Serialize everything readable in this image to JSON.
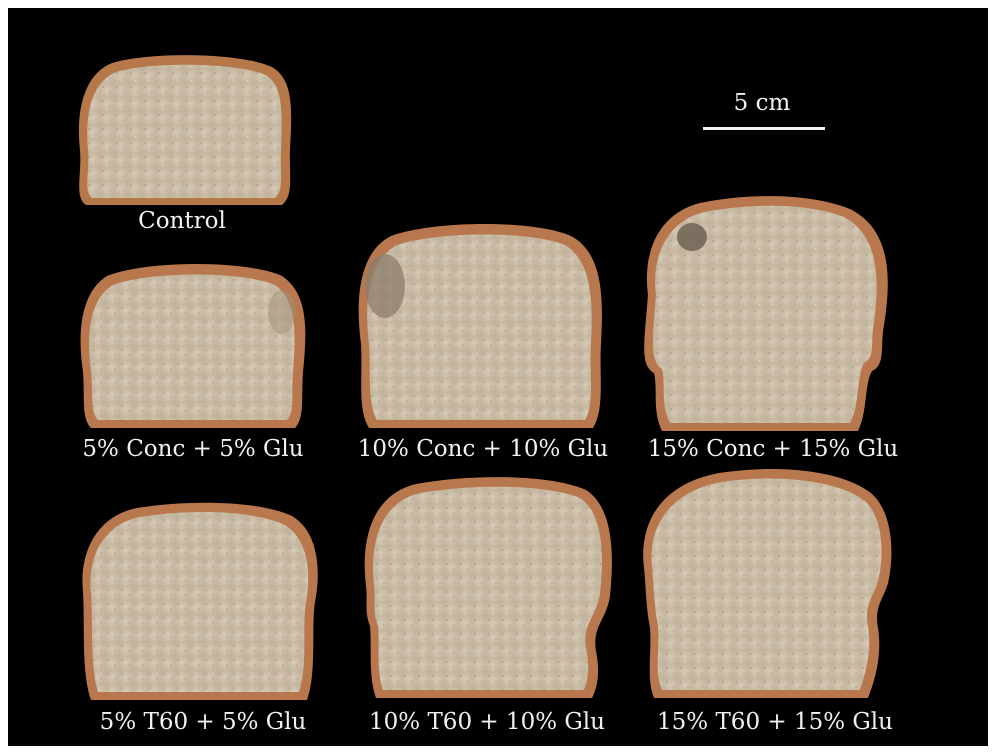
{
  "scale": {
    "label": "5 cm"
  },
  "labels": {
    "control": "Control",
    "conc5": "5% Conc + 5% Glu",
    "conc10": "10% Conc + 10% Glu",
    "conc15": "15% Conc + 15% Glu",
    "t60_5": "5% T60 + 5% Glu",
    "t60_10": "10% T60 + 10% Glu",
    "t60_15": "15% T60 + 15% Glu"
  },
  "colors": {
    "background": "#000000",
    "crust": "#b8774c",
    "crumb": "#cfc2ad",
    "text": "#f2f2f2"
  }
}
